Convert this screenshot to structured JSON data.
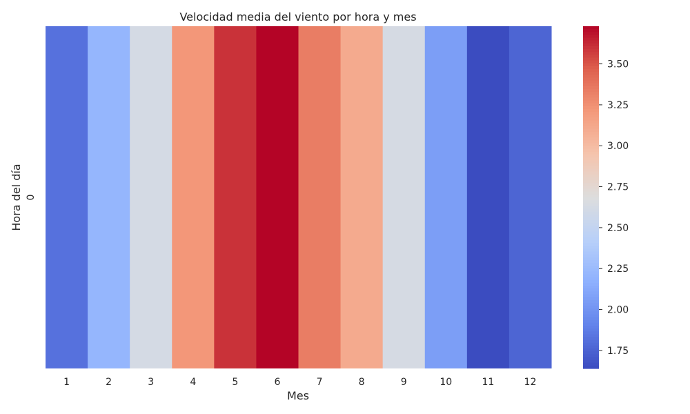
{
  "chart_data": {
    "type": "heatmap",
    "title": "Velocidad media del viento por hora y mes",
    "xlabel": "Mes",
    "ylabel": "Hora del día",
    "x_categories": [
      "1",
      "2",
      "3",
      "4",
      "5",
      "6",
      "7",
      "8",
      "9",
      "10",
      "11",
      "12"
    ],
    "y_categories": [
      "0"
    ],
    "values": [
      [
        1.82,
        2.21,
        2.62,
        3.22,
        3.6,
        3.73,
        3.34,
        3.11,
        2.63,
        2.06,
        1.64,
        1.76
      ]
    ],
    "colormap": "coolwarm",
    "vmin": 1.64,
    "vmax": 3.73,
    "colorbar_ticks": [
      "1.75",
      "2.00",
      "2.25",
      "2.50",
      "2.75",
      "3.00",
      "3.25",
      "3.50"
    ]
  }
}
